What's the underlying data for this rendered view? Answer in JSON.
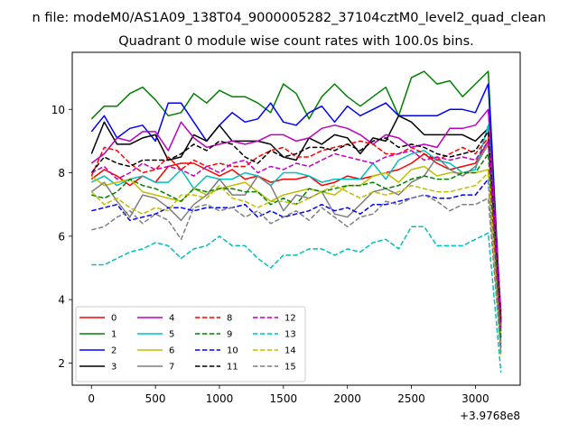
{
  "chart_data": {
    "type": "line",
    "suptitle": "n file: modeM0/AS1A09_138T04_9000005282_37104cztM0_level2_quad_clean",
    "title": "Quadrant 0 module wise count rates with 100.0s bins.",
    "xlabel": "",
    "ylabel": "",
    "x_offset_label": "+3.9768e8",
    "xlim": [
      -150,
      3350
    ],
    "ylim": [
      1.3,
      11.8
    ],
    "xticks": [
      0,
      500,
      1000,
      1500,
      2000,
      2500,
      3000
    ],
    "yticks": [
      2,
      4,
      6,
      8,
      10
    ],
    "grid": false,
    "legend_position": "lower-left",
    "x": [
      0,
      100,
      200,
      300,
      400,
      500,
      600,
      700,
      800,
      900,
      1000,
      1100,
      1200,
      1300,
      1400,
      1500,
      1600,
      1700,
      1800,
      1900,
      2000,
      2100,
      2200,
      2300,
      2400,
      2500,
      2600,
      2700,
      2800,
      2900,
      3000,
      3100,
      3200
    ],
    "series": [
      {
        "name": "0",
        "color": "#ff0000",
        "dash": "solid",
        "values": [
          7.8,
          8.1,
          7.9,
          7.6,
          7.9,
          7.7,
          8.2,
          8.3,
          8.3,
          8.1,
          7.9,
          8.1,
          7.8,
          7.9,
          7.7,
          7.8,
          7.8,
          7.9,
          7.6,
          7.7,
          7.9,
          7.8,
          7.9,
          8.0,
          8.1,
          8.3,
          8.6,
          8.3,
          8.1,
          8.2,
          8.3,
          9.0,
          3.0
        ]
      },
      {
        "name": "1",
        "color": "#008000",
        "dash": "solid",
        "values": [
          9.7,
          10.1,
          10.1,
          10.5,
          10.7,
          10.3,
          9.8,
          9.9,
          10.5,
          10.2,
          10.6,
          10.4,
          10.4,
          10.2,
          9.9,
          10.8,
          10.5,
          9.7,
          10.4,
          10.8,
          10.4,
          10.1,
          10.4,
          10.7,
          9.8,
          11.0,
          11.2,
          10.8,
          10.9,
          10.4,
          10.8,
          11.2,
          3.3
        ]
      },
      {
        "name": "2",
        "color": "#0000ff",
        "dash": "solid",
        "values": [
          9.3,
          9.8,
          9.1,
          9.4,
          9.5,
          9.0,
          10.2,
          10.2,
          9.6,
          9.0,
          9.5,
          9.9,
          9.6,
          9.7,
          10.2,
          9.6,
          9.5,
          9.9,
          10.1,
          9.6,
          10.1,
          9.8,
          10.0,
          10.2,
          9.8,
          9.8,
          9.8,
          9.8,
          10.0,
          10.0,
          9.9,
          10.8,
          3.4
        ]
      },
      {
        "name": "3",
        "color": "#000000",
        "dash": "solid",
        "values": [
          8.6,
          9.6,
          8.9,
          8.9,
          9.1,
          9.2,
          8.4,
          8.5,
          9.2,
          9.0,
          9.5,
          9.0,
          9.0,
          9.0,
          8.9,
          8.5,
          8.4,
          9.1,
          8.9,
          9.2,
          9.1,
          8.6,
          9.1,
          9.0,
          9.8,
          9.6,
          9.2,
          9.2,
          9.2,
          9.2,
          9.0,
          9.4,
          3.2
        ]
      },
      {
        "name": "4",
        "color": "#bf00bf",
        "dash": "solid",
        "values": [
          8.3,
          8.6,
          9.1,
          9.0,
          9.3,
          9.3,
          8.7,
          9.6,
          9.1,
          8.8,
          8.9,
          9.0,
          8.9,
          9.0,
          9.2,
          9.2,
          9.0,
          9.1,
          9.4,
          9.5,
          9.4,
          9.2,
          8.9,
          9.2,
          9.1,
          8.8,
          8.9,
          8.8,
          9.4,
          9.4,
          9.5,
          10.0,
          3.6
        ]
      },
      {
        "name": "5",
        "color": "#00bfbf",
        "dash": "solid",
        "values": [
          7.7,
          7.9,
          7.6,
          7.8,
          7.9,
          7.7,
          7.7,
          8.1,
          7.5,
          7.9,
          7.8,
          7.8,
          8.0,
          7.9,
          7.6,
          8.0,
          8.0,
          7.9,
          7.7,
          7.8,
          7.8,
          7.8,
          8.3,
          7.8,
          8.4,
          8.6,
          8.7,
          8.4,
          8.3,
          8.0,
          8.1,
          9.5,
          2.6
        ]
      },
      {
        "name": "6",
        "color": "#bfbf00",
        "dash": "solid",
        "values": [
          7.9,
          7.6,
          7.7,
          7.8,
          7.4,
          7.3,
          7.2,
          7.1,
          7.5,
          7.3,
          7.5,
          7.6,
          7.7,
          7.4,
          7.1,
          7.3,
          7.4,
          7.5,
          7.4,
          7.3,
          7.6,
          7.6,
          7.9,
          8.0,
          7.7,
          8.1,
          8.2,
          7.9,
          8.0,
          8.0,
          8.0,
          8.1,
          2.5
        ]
      },
      {
        "name": "7",
        "color": "#7f7f7f",
        "dash": "solid",
        "values": [
          7.4,
          7.7,
          7.1,
          6.6,
          7.3,
          7.2,
          6.9,
          6.5,
          7.0,
          7.3,
          7.8,
          7.3,
          7.3,
          7.9,
          7.6,
          6.8,
          7.3,
          7.2,
          7.4,
          6.7,
          6.6,
          7.0,
          7.4,
          7.5,
          7.3,
          7.7,
          7.9,
          8.5,
          8.1,
          7.9,
          8.2,
          8.9,
          3.1
        ]
      },
      {
        "name": "8",
        "color": "#ff0000",
        "dash": "dashed",
        "values": [
          7.9,
          8.8,
          8.7,
          8.3,
          8.0,
          8.1,
          8.5,
          8.1,
          8.4,
          8.2,
          8.3,
          8.2,
          8.2,
          8.5,
          8.7,
          8.8,
          8.5,
          8.5,
          8.7,
          8.8,
          8.9,
          9.0,
          8.9,
          8.6,
          8.6,
          8.8,
          8.6,
          8.4,
          8.6,
          8.8,
          8.6,
          9.1,
          3.4
        ]
      },
      {
        "name": "9",
        "color": "#008000",
        "dash": "dashed",
        "values": [
          7.3,
          7.2,
          7.4,
          7.8,
          7.6,
          7.5,
          7.3,
          7.1,
          7.5,
          7.4,
          7.5,
          7.5,
          7.4,
          7.4,
          7.0,
          7.2,
          7.0,
          7.5,
          7.4,
          7.5,
          7.6,
          7.6,
          7.7,
          7.5,
          7.6,
          7.8,
          7.9,
          7.8,
          7.8,
          8.0,
          8.0,
          8.6,
          2.8
        ]
      },
      {
        "name": "10",
        "color": "#0000ff",
        "dash": "dashed",
        "values": [
          6.8,
          6.9,
          7.0,
          6.5,
          6.6,
          6.7,
          6.9,
          6.9,
          6.8,
          6.9,
          6.9,
          6.9,
          7.0,
          6.6,
          6.8,
          6.6,
          6.7,
          6.8,
          7.0,
          6.8,
          6.9,
          6.7,
          7.0,
          7.0,
          7.1,
          7.2,
          7.3,
          7.2,
          7.2,
          7.3,
          7.3,
          7.8,
          2.4
        ]
      },
      {
        "name": "11",
        "color": "#000000",
        "dash": "dashed",
        "values": [
          8.0,
          8.5,
          8.3,
          8.2,
          8.4,
          8.4,
          8.4,
          8.6,
          8.9,
          8.7,
          9.0,
          8.9,
          8.5,
          8.3,
          8.7,
          8.5,
          8.6,
          8.8,
          8.8,
          8.7,
          8.9,
          8.7,
          9.0,
          9.1,
          8.8,
          8.9,
          8.8,
          8.6,
          8.5,
          8.6,
          8.7,
          9.3,
          3.3
        ]
      },
      {
        "name": "12",
        "color": "#bf00bf",
        "dash": "dashed",
        "values": [
          8.0,
          8.2,
          7.8,
          8.0,
          8.3,
          8.1,
          8.2,
          8.1,
          7.9,
          8.2,
          8.0,
          8.3,
          8.4,
          8.0,
          8.2,
          8.1,
          8.3,
          8.2,
          8.4,
          8.6,
          8.5,
          8.4,
          8.3,
          8.5,
          8.6,
          8.7,
          8.4,
          8.5,
          8.4,
          8.5,
          8.4,
          9.0,
          3.1
        ]
      },
      {
        "name": "13",
        "color": "#00bfbf",
        "dash": "dashed",
        "values": [
          5.1,
          5.1,
          5.3,
          5.5,
          5.6,
          5.8,
          5.7,
          5.3,
          5.6,
          5.7,
          6.0,
          5.7,
          5.7,
          5.3,
          5.0,
          5.4,
          5.4,
          5.6,
          5.6,
          5.4,
          5.6,
          5.5,
          5.8,
          5.9,
          5.6,
          6.3,
          6.3,
          5.7,
          5.7,
          5.7,
          5.9,
          6.1,
          1.7
        ]
      },
      {
        "name": "14",
        "color": "#bfbf00",
        "dash": "dashed",
        "values": [
          7.4,
          7.0,
          7.2,
          6.9,
          6.7,
          6.9,
          6.8,
          7.3,
          7.3,
          7.2,
          7.6,
          7.2,
          7.1,
          6.9,
          7.1,
          7.1,
          7.0,
          7.2,
          7.4,
          7.6,
          7.4,
          7.2,
          7.4,
          7.3,
          7.4,
          7.6,
          7.5,
          7.4,
          7.4,
          7.5,
          7.6,
          8.0,
          2.2
        ]
      },
      {
        "name": "15",
        "color": "#7f7f7f",
        "dash": "dashed",
        "values": [
          6.2,
          6.3,
          6.6,
          6.8,
          6.4,
          6.7,
          6.5,
          5.9,
          6.9,
          7.0,
          6.8,
          6.9,
          6.6,
          6.8,
          6.4,
          6.6,
          6.8,
          6.5,
          6.9,
          6.6,
          6.3,
          6.6,
          6.7,
          7.1,
          7.0,
          7.2,
          7.3,
          7.1,
          6.8,
          7.0,
          7.0,
          7.2,
          2.3
        ]
      }
    ]
  }
}
